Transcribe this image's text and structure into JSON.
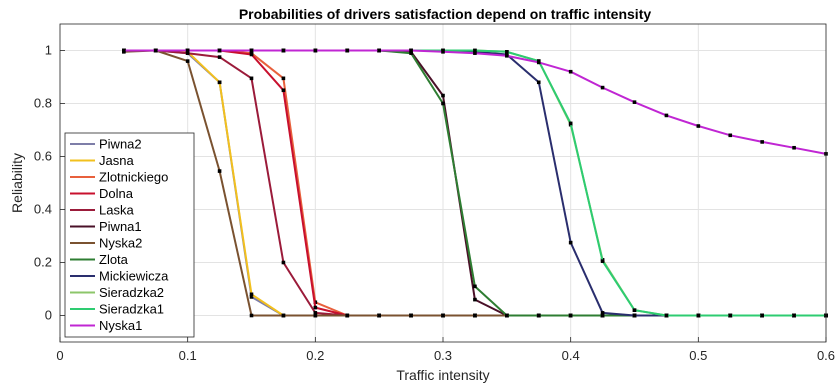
{
  "chart_data": {
    "type": "line",
    "title": "Probabilities of drivers satisfaction depend on traffic intensity",
    "xlabel": "Traffic intensity",
    "ylabel": "Reliability",
    "xlim": [
      0,
      0.6
    ],
    "ylim": [
      -0.1,
      1.1
    ],
    "xticks": [
      "0",
      "0.1",
      "0.2",
      "0.3",
      "0.4",
      "0.5",
      "0.6"
    ],
    "yticks": [
      "0",
      "0.2",
      "0.4",
      "0.6",
      "0.8",
      "1"
    ],
    "grid": true,
    "legend_position": "lower-left",
    "marker": "square",
    "x": [
      0.05,
      0.075,
      0.1,
      0.125,
      0.15,
      0.175,
      0.2,
      0.225,
      0.25,
      0.275,
      0.3,
      0.325,
      0.35,
      0.375,
      0.4,
      0.425,
      0.45,
      0.475,
      0.5,
      0.525,
      0.55,
      0.575,
      0.6
    ],
    "series": [
      {
        "name": "Piwna2",
        "color": "#7e7ea8",
        "values": [
          1,
          1,
          0.99,
          0.88,
          0.07,
          0,
          0,
          0,
          0,
          0,
          0,
          0,
          0,
          0,
          0,
          0,
          0,
          0,
          0,
          0,
          0,
          0,
          0
        ]
      },
      {
        "name": "Jasna",
        "color": "#f2c01e",
        "values": [
          1,
          1,
          0.995,
          0.88,
          0.08,
          0,
          0,
          0,
          0,
          0,
          0,
          0,
          0,
          0,
          0,
          0,
          0,
          0,
          0,
          0,
          0,
          0,
          0
        ]
      },
      {
        "name": "Zlotnickiego",
        "color": "#e8603c",
        "values": [
          1,
          1,
          1,
          1,
          0.99,
          0.895,
          0.05,
          0,
          0,
          0,
          0,
          0,
          0,
          0,
          0,
          0,
          0,
          0,
          0,
          0,
          0,
          0,
          0
        ]
      },
      {
        "name": "Dolna",
        "color": "#c8102e",
        "values": [
          1,
          1,
          1,
          1,
          0.985,
          0.85,
          0.03,
          0,
          0,
          0,
          0,
          0,
          0,
          0,
          0,
          0,
          0,
          0,
          0,
          0,
          0,
          0,
          0
        ]
      },
      {
        "name": "Laska",
        "color": "#9b1b3a",
        "values": [
          1,
          1,
          0.99,
          0.975,
          0.895,
          0.2,
          0.01,
          0,
          0,
          0,
          0,
          0,
          0,
          0,
          0,
          0,
          0,
          0,
          0,
          0,
          0,
          0,
          0
        ]
      },
      {
        "name": "Piwna1",
        "color": "#4a1028",
        "values": [
          1,
          1,
          1,
          1,
          1,
          1,
          1,
          1,
          1,
          0.995,
          0.83,
          0.06,
          0,
          0,
          0,
          0,
          0,
          0,
          0,
          0,
          0,
          0,
          0
        ]
      },
      {
        "name": "Nyska2",
        "color": "#7a5230",
        "values": [
          0.995,
          1,
          0.96,
          0.545,
          0,
          0,
          0,
          0,
          0,
          0,
          0,
          0,
          0,
          0,
          0,
          0,
          0,
          0,
          0,
          0,
          0,
          0,
          0
        ]
      },
      {
        "name": "Zlota",
        "color": "#2e7d32",
        "values": [
          1,
          1,
          1,
          1,
          1,
          1,
          1,
          1,
          1,
          0.99,
          0.8,
          0.11,
          0,
          0,
          0,
          0,
          0,
          0,
          0,
          0,
          0,
          0,
          0
        ]
      },
      {
        "name": "Mickiewicza",
        "color": "#2a2e6e",
        "values": [
          1,
          1,
          1,
          1,
          1,
          1,
          1,
          1,
          1,
          1,
          1,
          0.995,
          0.985,
          0.88,
          0.275,
          0.01,
          0,
          0,
          0,
          0,
          0,
          0,
          0
        ]
      },
      {
        "name": "Sieradzka2",
        "color": "#8cc66a",
        "values": [
          1,
          1,
          1,
          1,
          1,
          1,
          1,
          1,
          1,
          1,
          1,
          1,
          0.995,
          0.96,
          0.72,
          0.21,
          0.02,
          0,
          0,
          0,
          0,
          0,
          0
        ]
      },
      {
        "name": "Sieradzka1",
        "color": "#2ecc71",
        "values": [
          1,
          1,
          1,
          1,
          1,
          1,
          1,
          1,
          1,
          1,
          1,
          1,
          0.995,
          0.96,
          0.725,
          0.205,
          0.02,
          0,
          0,
          0,
          0,
          0,
          0
        ]
      },
      {
        "name": "Nyska1",
        "color": "#c026d3",
        "values": [
          1,
          1,
          1,
          1,
          1,
          1,
          1,
          1,
          1,
          1,
          0.995,
          0.99,
          0.98,
          0.955,
          0.92,
          0.86,
          0.805,
          0.755,
          0.715,
          0.68,
          0.655,
          0.633,
          0.61
        ]
      }
    ]
  }
}
